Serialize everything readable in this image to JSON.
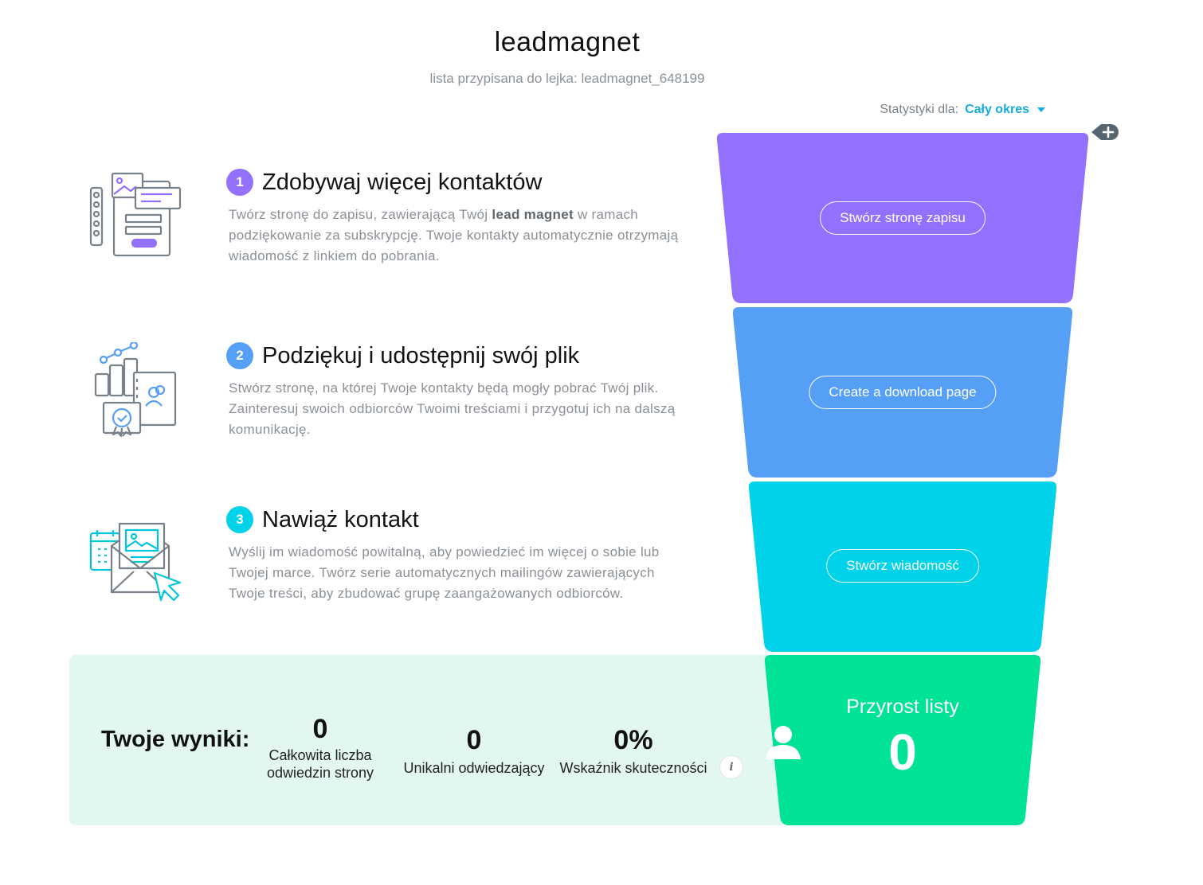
{
  "header": {
    "title": "leadmagnet",
    "subtitle": "lista przypisana do lejka: leadmagnet_648199"
  },
  "stats": {
    "label": "Statystyki dla:",
    "period": "Cały okres"
  },
  "steps": [
    {
      "number": "1",
      "title": "Zdobywaj więcej kontaktów",
      "desc_before": "Twórz stronę do zapisu, zawierającą Twój ",
      "desc_bold": "lead magnet",
      "desc_after": " w ramach podziękowanie za subskrypcję. Twoje kontakty automatycznie otrzymają wiadomość z linkiem do pobrania.",
      "button": "Stwórz stronę zapisu",
      "color": "#9470ff",
      "icon": "signup-form-icon"
    },
    {
      "number": "2",
      "title": "Podziękuj i udostępnij swój plik",
      "desc": "Stwórz stronę, na której Twoje kontakty będą mogły pobrać Twój plik. Zainteresuj swoich odbiorców Twoimi treściami i przygotuj ich na dalszą komunikację.",
      "button": "Create a download page",
      "color": "#569ff7",
      "icon": "download-content-icon"
    },
    {
      "number": "3",
      "title": "Nawiąż kontakt",
      "desc": "Wyślij im wiadomość powitalną, aby powiedzieć im więcej o sobie lub Twojej marce. Twórz serie automatycznych mailingów zawierających Twoje treści, aby zbudować grupę zaangażowanych odbiorców.",
      "button": "Stwórz wiadomość",
      "color": "#00d2ea",
      "icon": "email-envelope-icon"
    }
  ],
  "results": {
    "label": "Twoje wyniki:",
    "metrics": [
      {
        "value": "0",
        "caption_line1": "Całkowita liczba",
        "caption_line2": "odwiedzin strony"
      },
      {
        "value": "0",
        "caption": "Unikalni odwiedzający"
      },
      {
        "value": "0%",
        "caption": "Wskaźnik skuteczności"
      }
    ],
    "info_icon": "i"
  },
  "growth": {
    "title": "Przyrost listy",
    "value": "0",
    "color": "#00e296",
    "icon": "user-icon"
  }
}
